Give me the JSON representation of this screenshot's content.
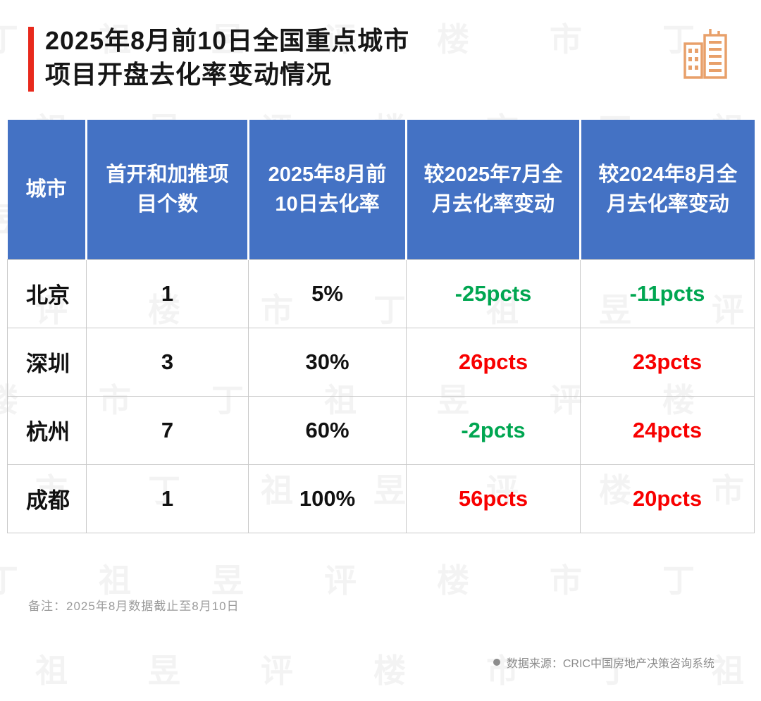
{
  "title": {
    "line1": "2025年8月前10日全国重点城市",
    "line2": "项目开盘去化率变动情况"
  },
  "table": {
    "headers": [
      "城市",
      "首开和加推项目个数",
      "2025年8月前10日去化率",
      "较2025年7月全月去化率变动",
      "较2024年8月全月去化率变动"
    ],
    "rows": [
      {
        "city": "北京",
        "count": "1",
        "rate": "5%",
        "vs_jul": "-25pcts",
        "vs_jul_color": "green",
        "vs_aug": "-11pcts",
        "vs_aug_color": "green"
      },
      {
        "city": "深圳",
        "count": "3",
        "rate": "30%",
        "vs_jul": "26pcts",
        "vs_jul_color": "red",
        "vs_aug": "23pcts",
        "vs_aug_color": "red"
      },
      {
        "city": "杭州",
        "count": "7",
        "rate": "60%",
        "vs_jul": "-2pcts",
        "vs_jul_color": "green",
        "vs_aug": "24pcts",
        "vs_aug_color": "red"
      },
      {
        "city": "成都",
        "count": "1",
        "rate": "100%",
        "vs_jul": "56pcts",
        "vs_jul_color": "red",
        "vs_aug": "20pcts",
        "vs_aug_color": "red"
      }
    ]
  },
  "note": {
    "text": "备注：2025年8月数据截止至8月10日"
  },
  "source": {
    "text": "数据来源：CRIC中国房地产决策咨询系统"
  },
  "colors": {
    "green": "#00A651",
    "red": "#F80000",
    "header_bg": "#4472C4",
    "accent_red": "#E8291C",
    "icon_orange": "#E8A06A",
    "note_gray": "#9B9B9B"
  },
  "watermark": {
    "chars": [
      "丁",
      "祖",
      "昱",
      "评",
      "楼",
      "市"
    ]
  },
  "chart_data": {
    "type": "table",
    "title": "2025年8月前10日全国重点城市项目开盘去化率变动情况",
    "columns": [
      "城市",
      "首开和加推项目个数",
      "2025年8月前10日去化率",
      "较2025年7月全月去化率变动",
      "较2024年8月全月去化率变动"
    ],
    "rows": [
      [
        "北京",
        1,
        "5%",
        "-25pcts",
        "-11pcts"
      ],
      [
        "深圳",
        3,
        "30%",
        "26pcts",
        "23pcts"
      ],
      [
        "杭州",
        7,
        "60%",
        "-2pcts",
        "24pcts"
      ],
      [
        "成都",
        1,
        "100%",
        "56pcts",
        "20pcts"
      ]
    ]
  }
}
